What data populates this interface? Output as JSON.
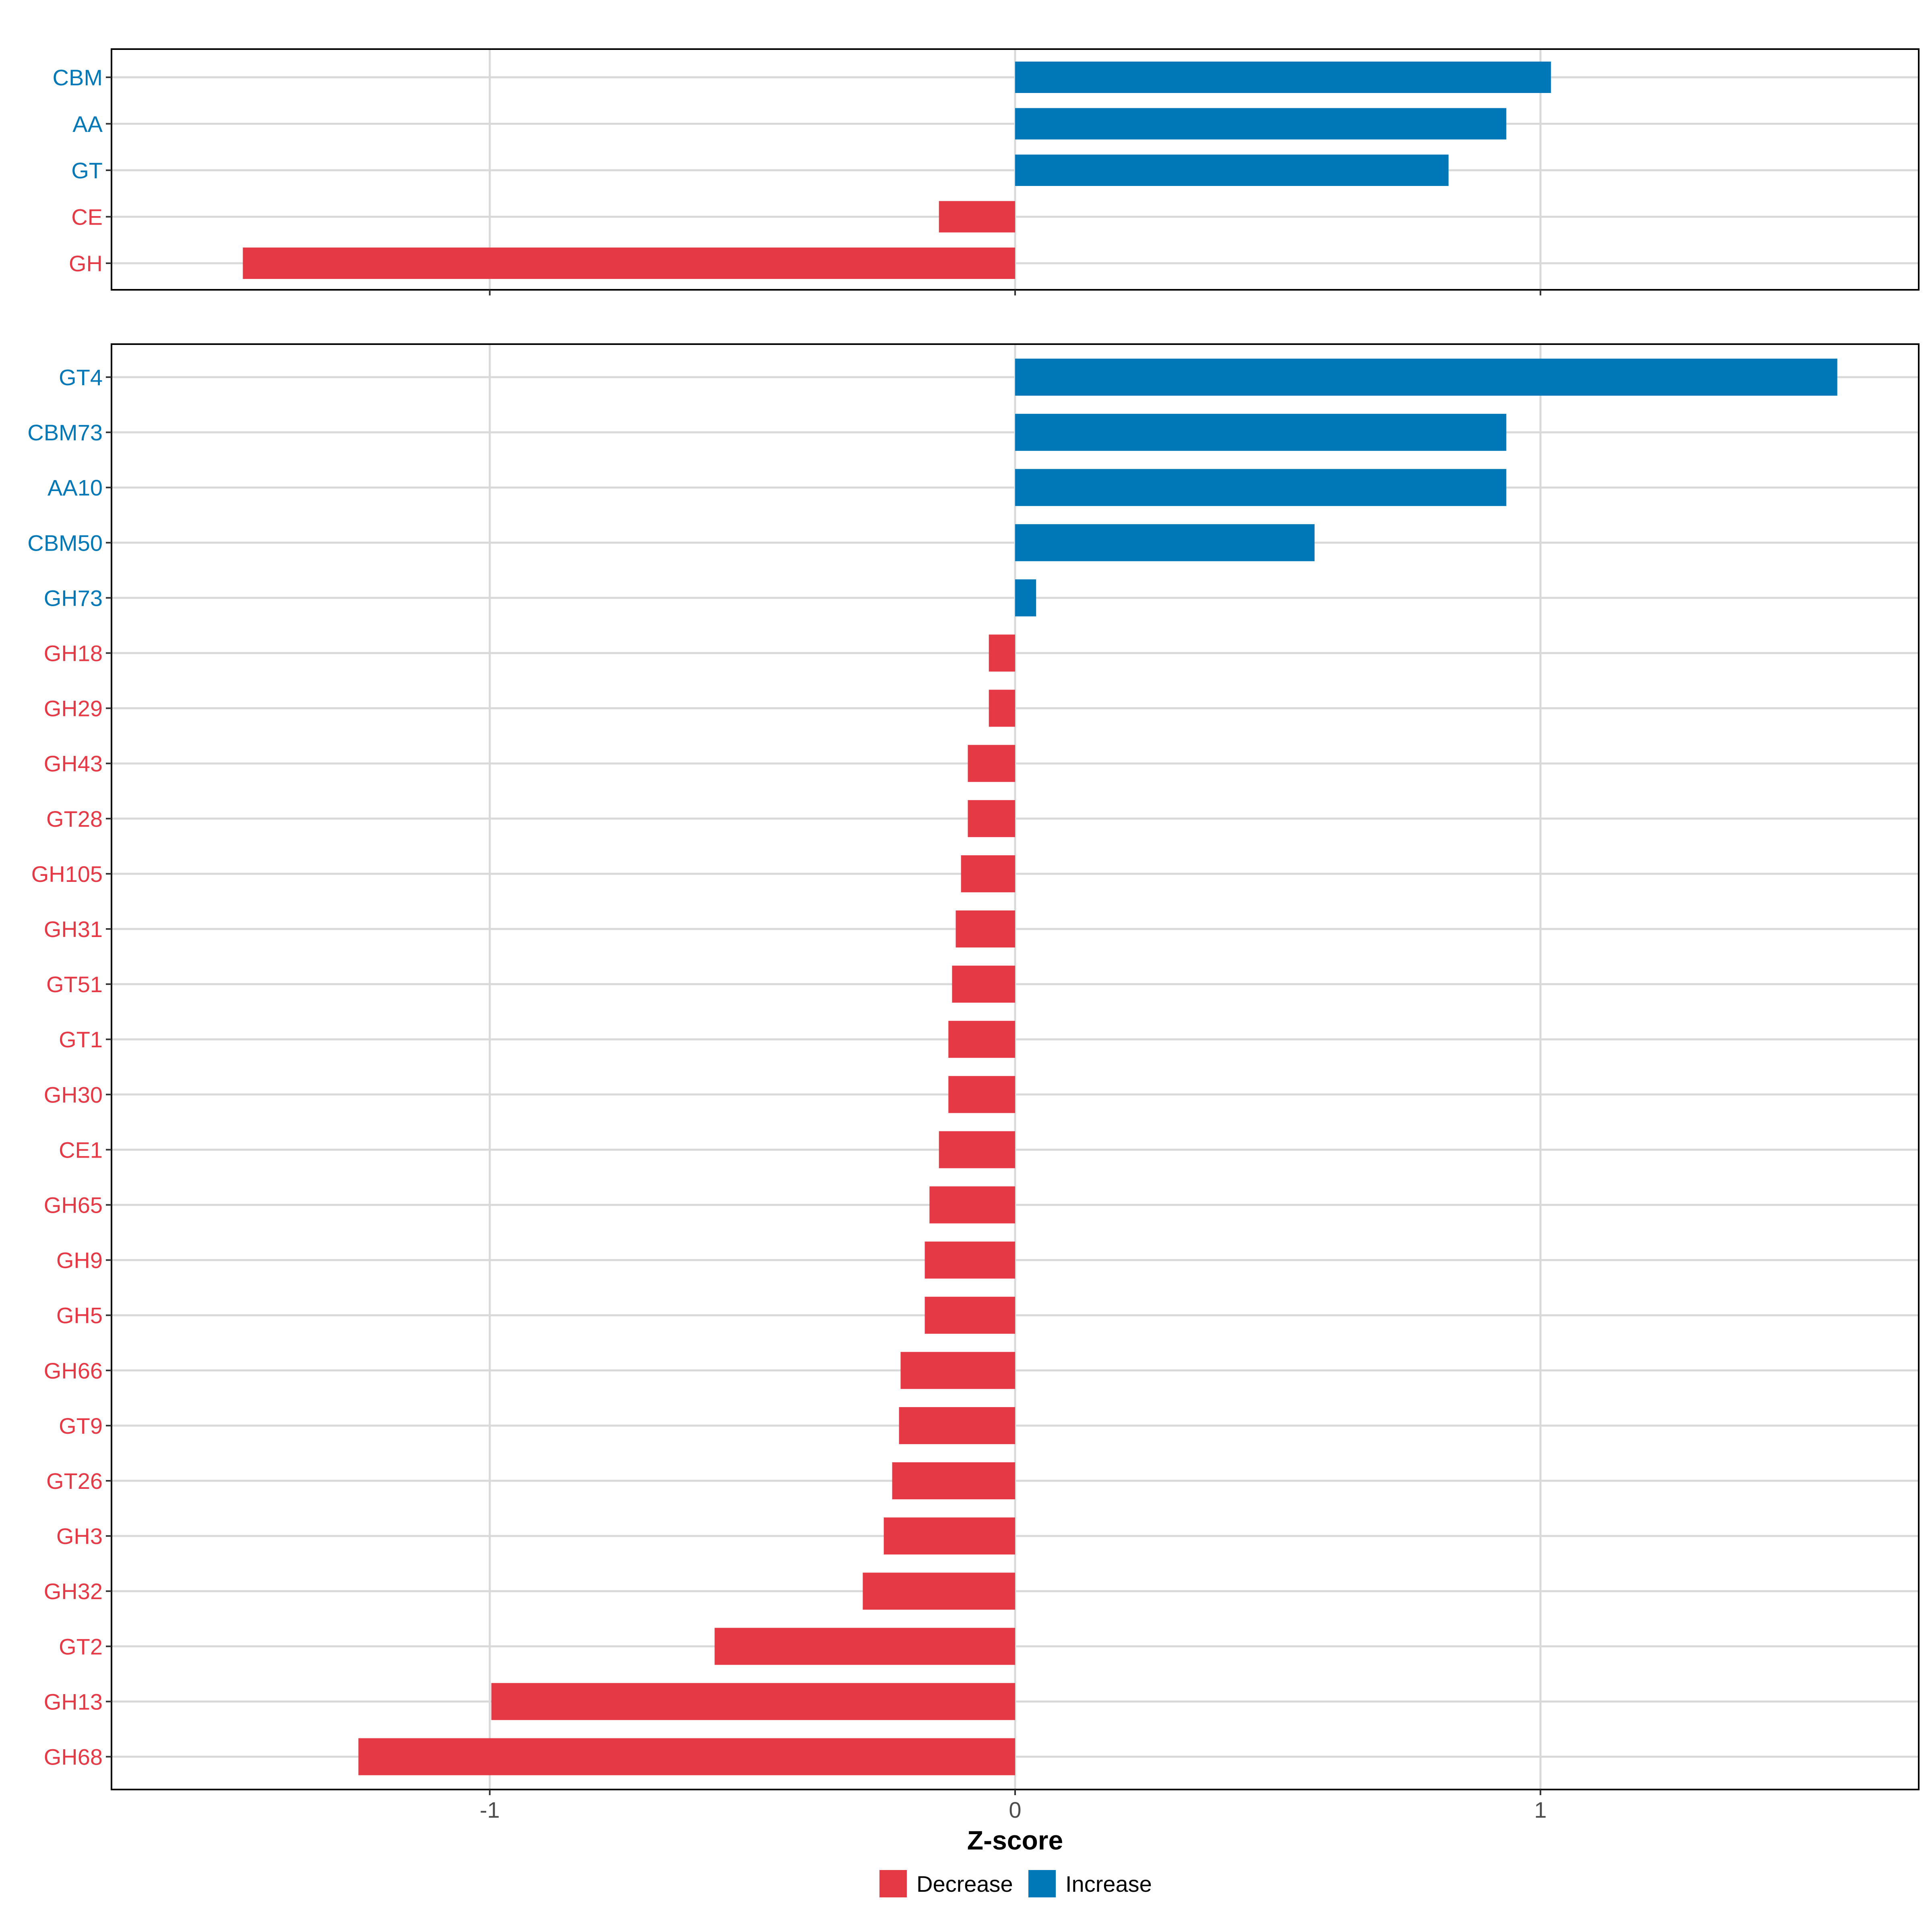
{
  "chart_data": [
    {
      "type": "bar",
      "orientation": "horizontal",
      "categories": [
        "CBM",
        "AA",
        "GT",
        "CE",
        "GH"
      ],
      "values": [
        1.02,
        0.935,
        0.825,
        -0.145,
        -1.47
      ],
      "groups": [
        "Increase",
        "Increase",
        "Increase",
        "Decrease",
        "Decrease"
      ],
      "xlim": [
        -1.72,
        1.72
      ],
      "grid": true
    },
    {
      "type": "bar",
      "orientation": "horizontal",
      "categories": [
        "GT4",
        "CBM73",
        "AA10",
        "CBM50",
        "GH73",
        "GH18",
        "GH29",
        "GH43",
        "GT28",
        "GH105",
        "GH31",
        "GT51",
        "GT1",
        "GH30",
        "CE1",
        "GH65",
        "GH9",
        "GH5",
        "GH66",
        "GT9",
        "GT26",
        "GH3",
        "GH32",
        "GT2",
        "GH13",
        "GH68"
      ],
      "values": [
        1.565,
        0.935,
        0.935,
        0.57,
        0.04,
        -0.05,
        -0.05,
        -0.09,
        -0.09,
        -0.103,
        -0.113,
        -0.12,
        -0.127,
        -0.127,
        -0.145,
        -0.163,
        -0.172,
        -0.172,
        -0.218,
        -0.221,
        -0.234,
        -0.25,
        -0.29,
        -0.572,
        -0.997,
        -1.25
      ],
      "groups": [
        "Increase",
        "Increase",
        "Increase",
        "Increase",
        "Increase",
        "Decrease",
        "Decrease",
        "Decrease",
        "Decrease",
        "Decrease",
        "Decrease",
        "Decrease",
        "Decrease",
        "Decrease",
        "Decrease",
        "Decrease",
        "Decrease",
        "Decrease",
        "Decrease",
        "Decrease",
        "Decrease",
        "Decrease",
        "Decrease",
        "Decrease",
        "Decrease",
        "Decrease"
      ],
      "xlim": [
        -1.72,
        1.72
      ],
      "grid": true,
      "x_ticks": [
        -1,
        0,
        1
      ],
      "x_tick_labels": [
        "-1",
        "0",
        "1"
      ],
      "xlabel": "Z-score"
    }
  ],
  "legend": {
    "placement": "bottom",
    "entries": [
      {
        "label": "Decrease",
        "color": "#E63946"
      },
      {
        "label": "Increase",
        "color": "#0077B6"
      }
    ]
  },
  "colors": {
    "Decrease": "#E63946",
    "Increase": "#0077B6",
    "grid": "#D9D9D9",
    "frame": "#000000",
    "tick_text": "#4D4D4D"
  }
}
